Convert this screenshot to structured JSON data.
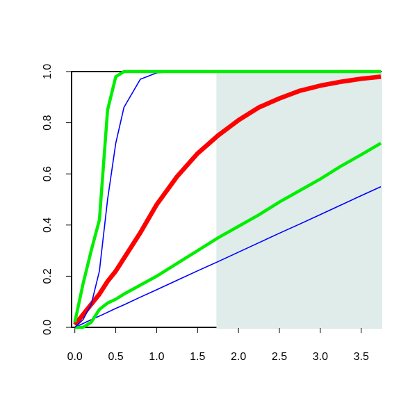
{
  "chart_data": {
    "type": "line",
    "x": [
      0,
      0.1,
      0.2,
      0.3,
      0.4,
      0.5,
      0.6,
      0.8,
      1,
      1.25,
      1.5,
      1.75,
      2,
      2.25,
      2.5,
      2.75,
      3,
      3.25,
      3.5,
      3.74
    ],
    "series": [
      {
        "color": "#0000ff",
        "linewidth": 1.6,
        "values": [
          0,
          0.015,
          0.03,
          0.044,
          0.059,
          0.074,
          0.088,
          0.118,
          0.147,
          0.184,
          0.221,
          0.257,
          0.294,
          0.331,
          0.368,
          0.404,
          0.441,
          0.478,
          0.515,
          0.55
        ]
      },
      {
        "color": "#00ee00",
        "linewidth": 4.5,
        "values": [
          0,
          0,
          0.02,
          0.07,
          0.095,
          0.11,
          0.13,
          0.165,
          0.2,
          0.25,
          0.3,
          0.35,
          0.395,
          0.44,
          0.49,
          0.535,
          0.58,
          0.63,
          0.675,
          0.72
        ]
      },
      {
        "color": "#ff0000",
        "linewidth": 6.5,
        "values": [
          0.01,
          0.05,
          0.09,
          0.13,
          0.18,
          0.22,
          0.27,
          0.37,
          0.48,
          0.59,
          0.68,
          0.75,
          0.81,
          0.86,
          0.895,
          0.925,
          0.945,
          0.96,
          0.972,
          0.98
        ]
      },
      {
        "color": "#0000ff",
        "linewidth": 1.6,
        "values": [
          0,
          0.03,
          0.09,
          0.22,
          0.5,
          0.72,
          0.86,
          0.97,
          0.995,
          1,
          1,
          1,
          1,
          1,
          1,
          1,
          1,
          1,
          1,
          1
        ]
      },
      {
        "color": "#00ee00",
        "linewidth": 4.5,
        "values": [
          0.02,
          0.17,
          0.3,
          0.42,
          0.85,
          0.98,
          1,
          1,
          1,
          1,
          1,
          1,
          1,
          1,
          1,
          1,
          1,
          1,
          1,
          1
        ]
      }
    ],
    "shade": {
      "from": 1.73,
      "to": 3.74,
      "color": "#dfecea"
    },
    "xlim": [
      -0.04,
      3.74
    ],
    "ylim": [
      0,
      1
    ],
    "xticks": [
      {
        "value": 0,
        "label": "0.0"
      },
      0.5,
      {
        "value": 1,
        "label": "1.0"
      },
      1.5,
      {
        "value": 2,
        "label": "2.0"
      },
      2.5,
      {
        "value": 3,
        "label": "3.0"
      },
      3.5
    ],
    "yticks": [
      {
        "value": 0,
        "label": "0.0"
      },
      0.2,
      0.4,
      0.6,
      0.8,
      {
        "value": 1,
        "label": "1.0"
      }
    ]
  }
}
